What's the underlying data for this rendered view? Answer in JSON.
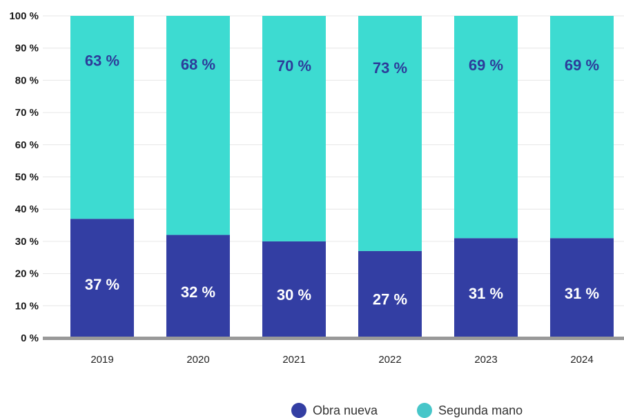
{
  "chart_data": {
    "type": "bar",
    "stacked": true,
    "categories": [
      "2019",
      "2020",
      "2021",
      "2022",
      "2023",
      "2024"
    ],
    "series": [
      {
        "name": "Obra nueva",
        "values": [
          37,
          32,
          30,
          27,
          31,
          31
        ],
        "labels": [
          "37 %",
          "32 %",
          "30 %",
          "27 %",
          "31 %",
          "31 %"
        ],
        "color": "#333ea3",
        "label_color": "#ffffff"
      },
      {
        "name": "Segunda mano",
        "values": [
          63,
          68,
          70,
          73,
          69,
          69
        ],
        "labels": [
          "63 %",
          "68 %",
          "70 %",
          "73 %",
          "69 %",
          "69 %"
        ],
        "color": "#3ddbd1",
        "label_color": "#2d3c9a"
      }
    ],
    "ylim": [
      0,
      100
    ],
    "yticks": [
      0,
      10,
      20,
      30,
      40,
      50,
      60,
      70,
      80,
      90,
      100
    ],
    "ytick_labels": [
      "0 %",
      "10 %",
      "20 %",
      "30 %",
      "40 %",
      "50 %",
      "60 %",
      "70 %",
      "80 %",
      "90 %",
      "100 %"
    ],
    "grid": true,
    "legend_position": "bottom-right",
    "axis_color": "#999999",
    "grid_color": "#e6e6e6"
  }
}
